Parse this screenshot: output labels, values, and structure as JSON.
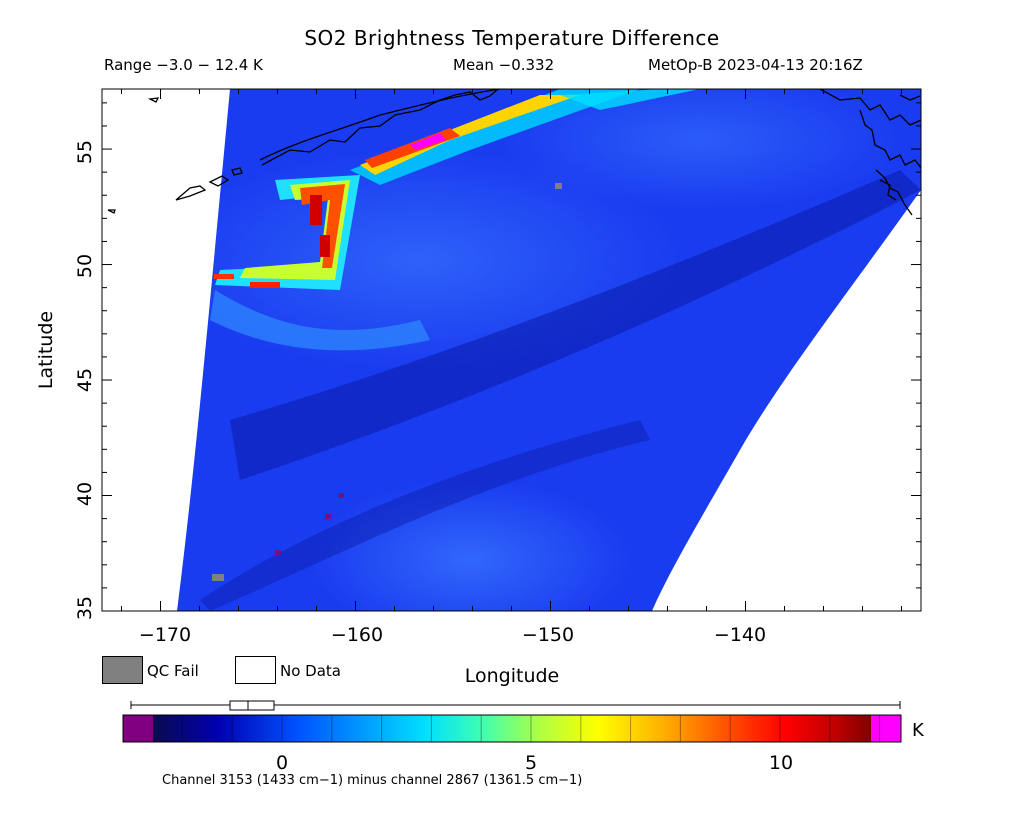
{
  "header": {
    "title": "SO2 Brightness Temperature Difference",
    "range": "Range −3.0 − 12.4 K",
    "mean": "Mean −0.332",
    "satellite_time": "MetOp-B 2023-04-13 20:16Z"
  },
  "axes": {
    "xlabel": "Longitude",
    "ylabel": "Latitude",
    "xticks": [
      "−170",
      "−160",
      "−150",
      "−140"
    ],
    "yticks": [
      "35",
      "40",
      "45",
      "50",
      "55"
    ],
    "xrange": [
      -173,
      -131
    ],
    "yrange": [
      35,
      57.6
    ]
  },
  "legend": {
    "qc_fail": "QC Fail",
    "no_data": "No Data",
    "qc_fail_color": "#808080",
    "no_data_color": "#ffffff"
  },
  "colorbar": {
    "unit": "K",
    "ticks": [
      "0",
      "5",
      "10"
    ],
    "min": -3,
    "max": 12.4,
    "note": "Channel 3153 (1433 cm−1) minus channel 2867 (1361.5 cm−1)",
    "low_color": "#800080",
    "high_color": "#ff00ff",
    "palette": [
      "#0a0a50",
      "#0000b0",
      "#0050ff",
      "#00a0ff",
      "#00e0ff",
      "#40ffb0",
      "#b0ff40",
      "#ffff00",
      "#ffb000",
      "#ff5000",
      "#ff0000",
      "#c00000",
      "#800000"
    ]
  }
}
